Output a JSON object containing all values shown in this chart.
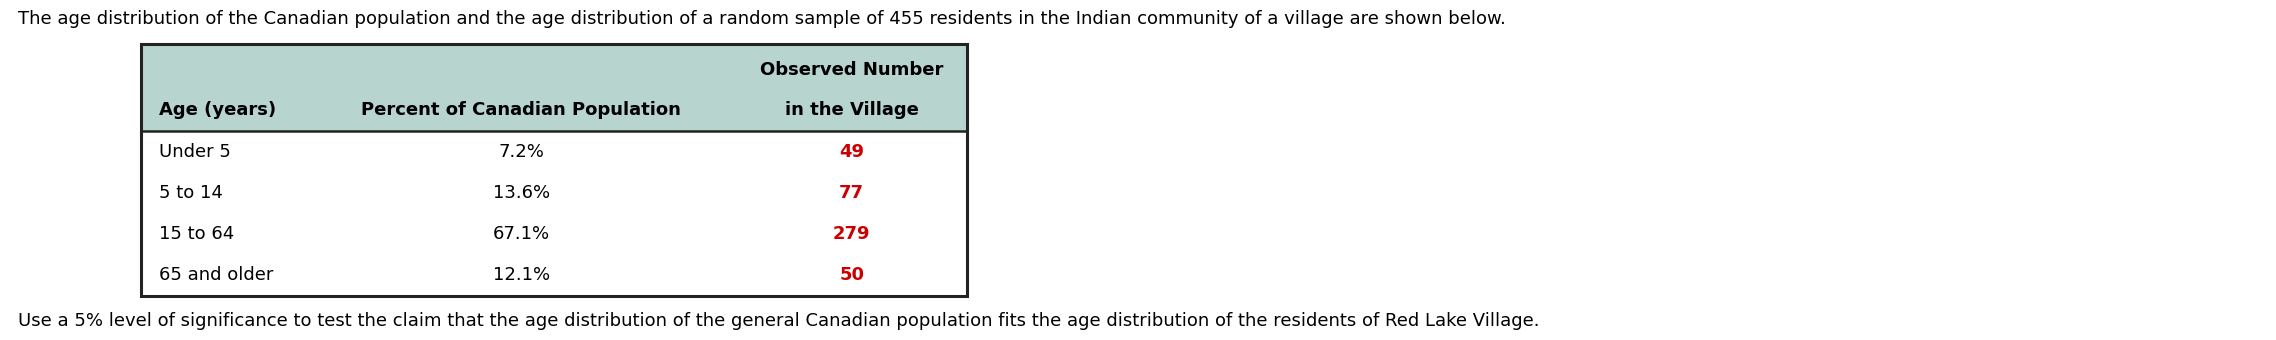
{
  "title": "The age distribution of the Canadian population and the age distribution of a random sample of 455 residents in the Indian community of a village are shown below.",
  "footer": "Use a 5% level of significance to test the claim that the age distribution of the general Canadian population fits the age distribution of the residents of Red Lake Village.",
  "col_headers_line1": [
    "",
    "",
    "Observed Number"
  ],
  "col_headers_line2": [
    "Age (years)",
    "Percent of Canadian Population",
    "in the Village"
  ],
  "rows": [
    [
      "Under 5",
      "7.2%",
      "49"
    ],
    [
      "5 to 14",
      "13.6%",
      "77"
    ],
    [
      "15 to 64",
      "67.1%",
      "279"
    ],
    [
      "65 and older",
      "12.1%",
      "50"
    ]
  ],
  "header_bg": "#b8d4cf",
  "table_border_color": "#222222",
  "header_text_color": "#000000",
  "row_text_color": "#000000",
  "observed_text_color": "#cc0000",
  "bg_color": "#ffffff",
  "title_fontsize": 13.0,
  "footer_fontsize": 13.0,
  "header_fontsize": 13.0,
  "cell_fontsize": 13.0
}
